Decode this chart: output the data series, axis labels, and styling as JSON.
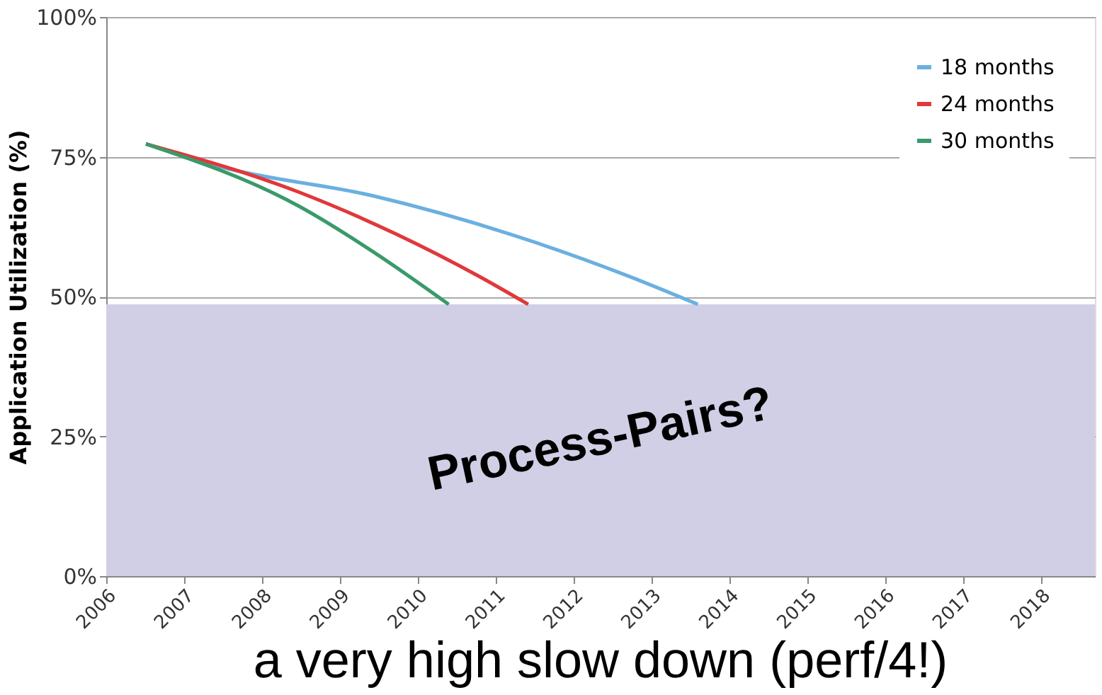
{
  "chart_data": {
    "type": "line",
    "ylabel": "Application Utilization (%)",
    "xlim": [
      2006,
      2018.7
    ],
    "xticks": [
      2006,
      2007,
      2008,
      2009,
      2010,
      2011,
      2012,
      2013,
      2014,
      2015,
      2016,
      2017,
      2018
    ],
    "ylim": [
      0,
      100
    ],
    "yticks": [
      {
        "value": 0,
        "label": "0%"
      },
      {
        "value": 25,
        "label": "25%"
      },
      {
        "value": 50,
        "label": "50%"
      },
      {
        "value": 75,
        "label": "75%"
      },
      {
        "value": 100,
        "label": "100%"
      }
    ],
    "grid": "y",
    "legend": "top right",
    "line_style": "solid",
    "marker": "none",
    "series": [
      {
        "name": "18 months",
        "color": "#6ab0e0",
        "x": [
          2006.51,
          2007.5,
          2009.43,
          2011.18,
          2012.72,
          2013.6
        ],
        "values": [
          77.3,
          73.1,
          68.0,
          61.2,
          53.6,
          48.6
        ]
      },
      {
        "name": "24 months",
        "color": "#e0383b",
        "x": [
          2006.51,
          2008.47,
          2009.72,
          2010.79,
          2011.42
        ],
        "values": [
          77.3,
          68.7,
          61.2,
          53.6,
          48.6
        ]
      },
      {
        "name": "30 months",
        "color": "#3a9a6a",
        "x": [
          2006.51,
          2008.47,
          2009.43,
          2010.4
        ],
        "values": [
          77.3,
          66.2,
          58.0,
          48.6
        ]
      }
    ],
    "bands": [
      {
        "axis": "y",
        "from": 0,
        "to": 48.6,
        "label": "Process-Pairs?",
        "color": "#d1cfe6"
      }
    ],
    "annotations": [
      "a very high slow down (perf/4!)"
    ]
  }
}
